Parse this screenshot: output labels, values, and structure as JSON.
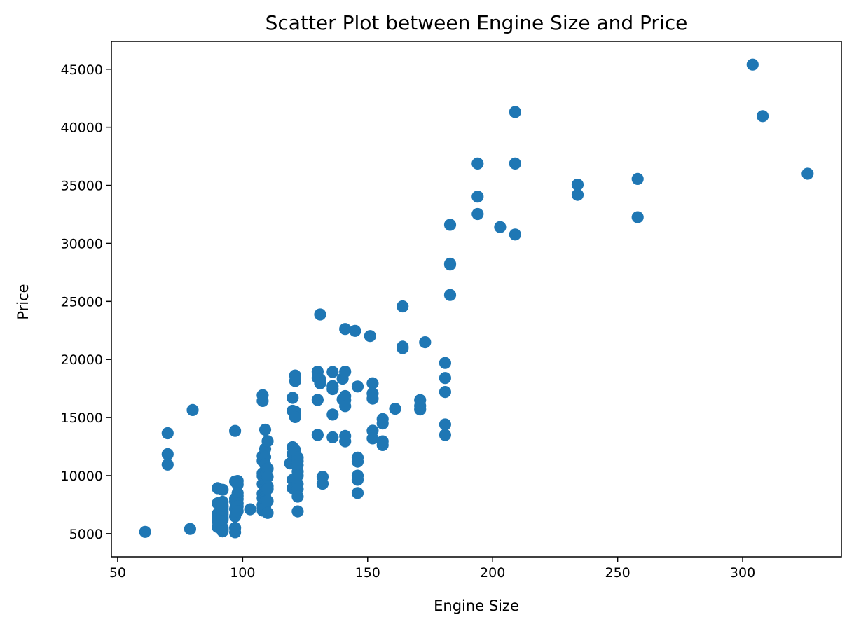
{
  "chart_data": {
    "type": "scatter",
    "title": "Scatter Plot between Engine Size and Price",
    "xlabel": "Engine Size",
    "ylabel": "Price",
    "xlim": [
      47.5,
      339.5
    ],
    "ylim": [
      3000,
      47400
    ],
    "xticks": [
      50,
      100,
      150,
      200,
      250,
      300
    ],
    "yticks": [
      5000,
      10000,
      15000,
      20000,
      25000,
      30000,
      35000,
      40000,
      45000
    ],
    "grid": false,
    "color": "#1f77b4",
    "points": [
      [
        61,
        5151
      ],
      [
        70,
        13645
      ],
      [
        70,
        11845
      ],
      [
        70,
        10945
      ],
      [
        79,
        5399
      ],
      [
        80,
        15645
      ],
      [
        90,
        8916
      ],
      [
        90,
        7609
      ],
      [
        90,
        6695
      ],
      [
        90,
        6489
      ],
      [
        90,
        6229
      ],
      [
        90,
        5572
      ],
      [
        90,
        6095
      ],
      [
        92,
        8778
      ],
      [
        92,
        7295
      ],
      [
        92,
        6855
      ],
      [
        92,
        6377
      ],
      [
        92,
        5499
      ],
      [
        92,
        5195
      ],
      [
        92,
        5348
      ],
      [
        92,
        5389
      ],
      [
        92,
        6189
      ],
      [
        92,
        6669
      ],
      [
        92,
        7099
      ],
      [
        92,
        7395
      ],
      [
        92,
        7738
      ],
      [
        97,
        13845
      ],
      [
        97,
        5499
      ],
      [
        97,
        5118
      ],
      [
        97,
        6479
      ],
      [
        97,
        7126
      ],
      [
        97,
        7775
      ],
      [
        97,
        8013
      ],
      [
        97,
        9495
      ],
      [
        98,
        9538
      ],
      [
        98,
        9233
      ],
      [
        98,
        8495
      ],
      [
        98,
        8249
      ],
      [
        98,
        7975
      ],
      [
        98,
        7603
      ],
      [
        98,
        7349
      ],
      [
        98,
        6938
      ],
      [
        103,
        7099
      ],
      [
        108,
        16925
      ],
      [
        108,
        16430
      ],
      [
        108,
        11694
      ],
      [
        108,
        11259
      ],
      [
        108,
        10198
      ],
      [
        108,
        9960
      ],
      [
        108,
        9279
      ],
      [
        108,
        8449
      ],
      [
        108,
        8058
      ],
      [
        108,
        7463
      ],
      [
        108,
        7198
      ],
      [
        108,
        6989
      ],
      [
        109,
        13950
      ],
      [
        109,
        12290
      ],
      [
        109,
        11595
      ],
      [
        109,
        10945
      ],
      [
        109,
        10295
      ],
      [
        109,
        9995
      ],
      [
        109,
        9495
      ],
      [
        109,
        9295
      ],
      [
        109,
        8949
      ],
      [
        109,
        8495
      ],
      [
        109,
        8195
      ],
      [
        109,
        7995
      ],
      [
        109,
        7775
      ],
      [
        109,
        7299
      ],
      [
        110,
        12964
      ],
      [
        110,
        10595
      ],
      [
        110,
        9895
      ],
      [
        110,
        9095
      ],
      [
        110,
        8845
      ],
      [
        110,
        7799
      ],
      [
        110,
        6785
      ],
      [
        119,
        11048
      ],
      [
        120,
        16695
      ],
      [
        120,
        15580
      ],
      [
        120,
        12440
      ],
      [
        120,
        11850
      ],
      [
        120,
        9639
      ],
      [
        120,
        8921
      ],
      [
        121,
        18620
      ],
      [
        121,
        18150
      ],
      [
        121,
        15510
      ],
      [
        121,
        15040
      ],
      [
        121,
        12170
      ],
      [
        122,
        11549
      ],
      [
        122,
        11245
      ],
      [
        122,
        10898
      ],
      [
        122,
        10345
      ],
      [
        122,
        9989
      ],
      [
        122,
        9279
      ],
      [
        122,
        8845
      ],
      [
        122,
        8189
      ],
      [
        122,
        6918
      ],
      [
        130,
        18950
      ],
      [
        130,
        18420
      ],
      [
        130,
        16515
      ],
      [
        130,
        13499
      ],
      [
        131,
        23875
      ],
      [
        131,
        18280
      ],
      [
        131,
        17950
      ],
      [
        132,
        9895
      ],
      [
        132,
        9298
      ],
      [
        136,
        18920
      ],
      [
        136,
        17710
      ],
      [
        136,
        17450
      ],
      [
        136,
        15250
      ],
      [
        136,
        13295
      ],
      [
        140,
        18344
      ],
      [
        140,
        16558
      ],
      [
        141,
        22625
      ],
      [
        141,
        18950
      ],
      [
        141,
        16845
      ],
      [
        141,
        16500
      ],
      [
        141,
        15985
      ],
      [
        141,
        13415
      ],
      [
        141,
        12945
      ],
      [
        145,
        22470
      ],
      [
        146,
        17669
      ],
      [
        146,
        11549
      ],
      [
        146,
        11199
      ],
      [
        146,
        9989
      ],
      [
        146,
        9639
      ],
      [
        146,
        8499
      ],
      [
        151,
        22018
      ],
      [
        152,
        17950
      ],
      [
        152,
        17075
      ],
      [
        152,
        16630
      ],
      [
        152,
        13860
      ],
      [
        152,
        13200
      ],
      [
        156,
        14869
      ],
      [
        156,
        14489
      ],
      [
        156,
        12945
      ],
      [
        156,
        12629
      ],
      [
        161,
        15750
      ],
      [
        164,
        24565
      ],
      [
        164,
        21105
      ],
      [
        164,
        20970
      ],
      [
        171,
        16503
      ],
      [
        171,
        15998
      ],
      [
        171,
        15690
      ],
      [
        173,
        21485
      ],
      [
        181,
        19699
      ],
      [
        181,
        18399
      ],
      [
        181,
        17199
      ],
      [
        181,
        14399
      ],
      [
        181,
        13499
      ],
      [
        183,
        31600
      ],
      [
        183,
        28248
      ],
      [
        183,
        28176
      ],
      [
        183,
        25552
      ],
      [
        194,
        36880
      ],
      [
        194,
        34028
      ],
      [
        194,
        32528
      ],
      [
        203,
        31400
      ],
      [
        209,
        41315
      ],
      [
        209,
        36880
      ],
      [
        209,
        30760
      ],
      [
        234,
        35056
      ],
      [
        234,
        34184
      ],
      [
        258,
        35550
      ],
      [
        258,
        32250
      ],
      [
        304,
        45400
      ],
      [
        308,
        40960
      ],
      [
        326,
        36000
      ]
    ]
  }
}
